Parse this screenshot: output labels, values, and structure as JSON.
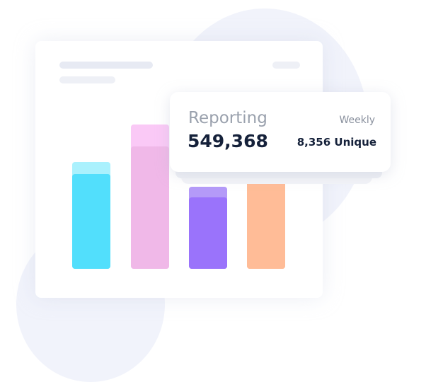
{
  "card": {
    "title": "Reporting",
    "value": "549,368",
    "period": "Weekly",
    "unique": "8,356 Unique"
  },
  "colors": {
    "bar_cyan": "#52dffc",
    "bar_pink": "#f0b8e8",
    "bar_purple": "#9a73fb",
    "bar_orange": "#ffbc97",
    "background_blob": "#f1f3fb"
  }
}
